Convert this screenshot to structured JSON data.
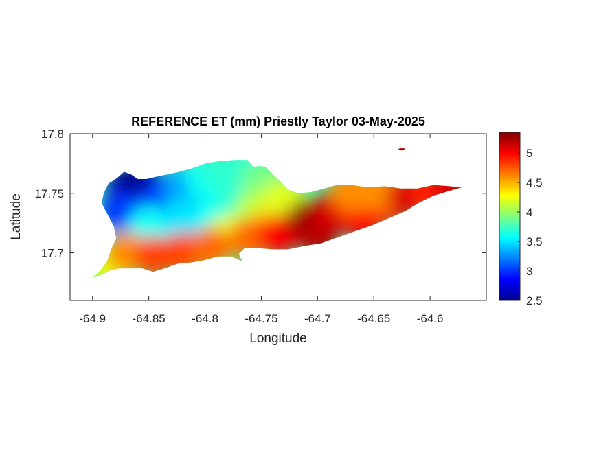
{
  "chart_data": {
    "type": "heatmap",
    "title": "REFERENCE ET (mm) Priestly Taylor 03-May-2025",
    "xlabel": "Longitude",
    "ylabel": "Latitude",
    "xlim": [
      -64.92,
      -64.55
    ],
    "ylim": [
      17.66,
      17.8
    ],
    "xticks": [
      -64.9,
      -64.85,
      -64.8,
      -64.75,
      -64.7,
      -64.65,
      -64.6
    ],
    "xtick_labels": [
      "-64.9",
      "-64.85",
      "-64.8",
      "-64.75",
      "-64.7",
      "-64.65",
      "-64.6"
    ],
    "yticks": [
      17.7,
      17.75,
      17.8
    ],
    "ytick_labels": [
      "17.7",
      "17.75",
      "17.8"
    ],
    "colorbar": {
      "colormap": "jet",
      "range": [
        2.5,
        5.35
      ],
      "ticks": [
        2.5,
        3,
        3.5,
        4,
        4.5,
        5
      ],
      "tick_labels": [
        "2.5",
        "3",
        "3.5",
        "4",
        "4.5",
        "5"
      ]
    },
    "grid": false,
    "island_outline": [
      [
        -64.9,
        17.679
      ],
      [
        -64.894,
        17.684
      ],
      [
        -64.887,
        17.693
      ],
      [
        -64.883,
        17.704
      ],
      [
        -64.879,
        17.712
      ],
      [
        -64.881,
        17.722
      ],
      [
        -64.887,
        17.733
      ],
      [
        -64.892,
        17.742
      ],
      [
        -64.89,
        17.75
      ],
      [
        -64.886,
        17.758
      ],
      [
        -64.878,
        17.763
      ],
      [
        -64.872,
        17.768
      ],
      [
        -64.866,
        17.766
      ],
      [
        -64.86,
        17.762
      ],
      [
        -64.852,
        17.762
      ],
      [
        -64.843,
        17.764
      ],
      [
        -64.833,
        17.766
      ],
      [
        -64.823,
        17.768
      ],
      [
        -64.811,
        17.771
      ],
      [
        -64.8,
        17.775
      ],
      [
        -64.787,
        17.777
      ],
      [
        -64.773,
        17.778
      ],
      [
        -64.762,
        17.778
      ],
      [
        -64.757,
        17.772
      ],
      [
        -64.752,
        17.773
      ],
      [
        -64.746,
        17.772
      ],
      [
        -64.741,
        17.767
      ],
      [
        -64.733,
        17.76
      ],
      [
        -64.726,
        17.753
      ],
      [
        -64.717,
        17.75
      ],
      [
        -64.706,
        17.751
      ],
      [
        -64.694,
        17.754
      ],
      [
        -64.683,
        17.757
      ],
      [
        -64.67,
        17.757
      ],
      [
        -64.655,
        17.755
      ],
      [
        -64.64,
        17.756
      ],
      [
        -64.626,
        17.754
      ],
      [
        -64.611,
        17.754
      ],
      [
        -64.597,
        17.757
      ],
      [
        -64.583,
        17.756
      ],
      [
        -64.572,
        17.755
      ],
      [
        -64.583,
        17.752
      ],
      [
        -64.597,
        17.748
      ],
      [
        -64.61,
        17.742
      ],
      [
        -64.622,
        17.735
      ],
      [
        -64.637,
        17.729
      ],
      [
        -64.652,
        17.723
      ],
      [
        -64.667,
        17.718
      ],
      [
        -64.682,
        17.713
      ],
      [
        -64.697,
        17.708
      ],
      [
        -64.711,
        17.706
      ],
      [
        -64.726,
        17.703
      ],
      [
        -64.74,
        17.703
      ],
      [
        -64.753,
        17.704
      ],
      [
        -64.765,
        17.704
      ],
      [
        -64.77,
        17.699
      ],
      [
        -64.767,
        17.693
      ],
      [
        -64.777,
        17.697
      ],
      [
        -64.789,
        17.697
      ],
      [
        -64.8,
        17.694
      ],
      [
        -64.812,
        17.692
      ],
      [
        -64.824,
        17.691
      ],
      [
        -64.836,
        17.687
      ],
      [
        -64.846,
        17.684
      ],
      [
        -64.856,
        17.687
      ],
      [
        -64.866,
        17.687
      ],
      [
        -64.876,
        17.687
      ],
      [
        -64.885,
        17.685
      ],
      [
        -64.893,
        17.681
      ]
    ],
    "value_field_samples": [
      {
        "lon": -64.87,
        "lat": 17.755,
        "value": 2.6
      },
      {
        "lon": -64.855,
        "lat": 17.758,
        "value": 2.5
      },
      {
        "lon": -64.875,
        "lat": 17.735,
        "value": 3.0
      },
      {
        "lon": -64.84,
        "lat": 17.745,
        "value": 3.0
      },
      {
        "lon": -64.82,
        "lat": 17.755,
        "value": 3.3
      },
      {
        "lon": -64.8,
        "lat": 17.762,
        "value": 3.6
      },
      {
        "lon": -64.785,
        "lat": 17.77,
        "value": 3.7
      },
      {
        "lon": -64.765,
        "lat": 17.77,
        "value": 3.7
      },
      {
        "lon": -64.85,
        "lat": 17.722,
        "value": 3.6
      },
      {
        "lon": -64.82,
        "lat": 17.728,
        "value": 3.5
      },
      {
        "lon": -64.79,
        "lat": 17.735,
        "value": 3.6
      },
      {
        "lon": -64.77,
        "lat": 17.745,
        "value": 3.7
      },
      {
        "lon": -64.75,
        "lat": 17.76,
        "value": 3.9
      },
      {
        "lon": -64.755,
        "lat": 17.735,
        "value": 4.1
      },
      {
        "lon": -64.78,
        "lat": 17.715,
        "value": 4.2
      },
      {
        "lon": -64.74,
        "lat": 17.725,
        "value": 4.4
      },
      {
        "lon": -64.73,
        "lat": 17.745,
        "value": 4.2
      },
      {
        "lon": -64.885,
        "lat": 17.69,
        "value": 4.2
      },
      {
        "lon": -64.87,
        "lat": 17.7,
        "value": 4.6
      },
      {
        "lon": -64.845,
        "lat": 17.697,
        "value": 4.8
      },
      {
        "lon": -64.82,
        "lat": 17.7,
        "value": 4.8
      },
      {
        "lon": -64.795,
        "lat": 17.704,
        "value": 4.7
      },
      {
        "lon": -64.76,
        "lat": 17.712,
        "value": 4.7
      },
      {
        "lon": -64.735,
        "lat": 17.715,
        "value": 5.0
      },
      {
        "lon": -64.71,
        "lat": 17.727,
        "value": 5.3
      },
      {
        "lon": -64.7,
        "lat": 17.715,
        "value": 5.2
      },
      {
        "lon": -64.685,
        "lat": 17.735,
        "value": 5.1
      },
      {
        "lon": -64.665,
        "lat": 17.74,
        "value": 4.9
      },
      {
        "lon": -64.66,
        "lat": 17.728,
        "value": 5.0
      },
      {
        "lon": -64.64,
        "lat": 17.74,
        "value": 5.0
      },
      {
        "lon": -64.67,
        "lat": 17.752,
        "value": 4.6
      },
      {
        "lon": -64.645,
        "lat": 17.752,
        "value": 4.6
      },
      {
        "lon": -64.62,
        "lat": 17.748,
        "value": 5.1
      },
      {
        "lon": -64.6,
        "lat": 17.752,
        "value": 4.9
      },
      {
        "lon": -64.58,
        "lat": 17.755,
        "value": 5.1
      },
      {
        "lon": -64.625,
        "lat": 17.787,
        "value": 5.2
      }
    ]
  }
}
